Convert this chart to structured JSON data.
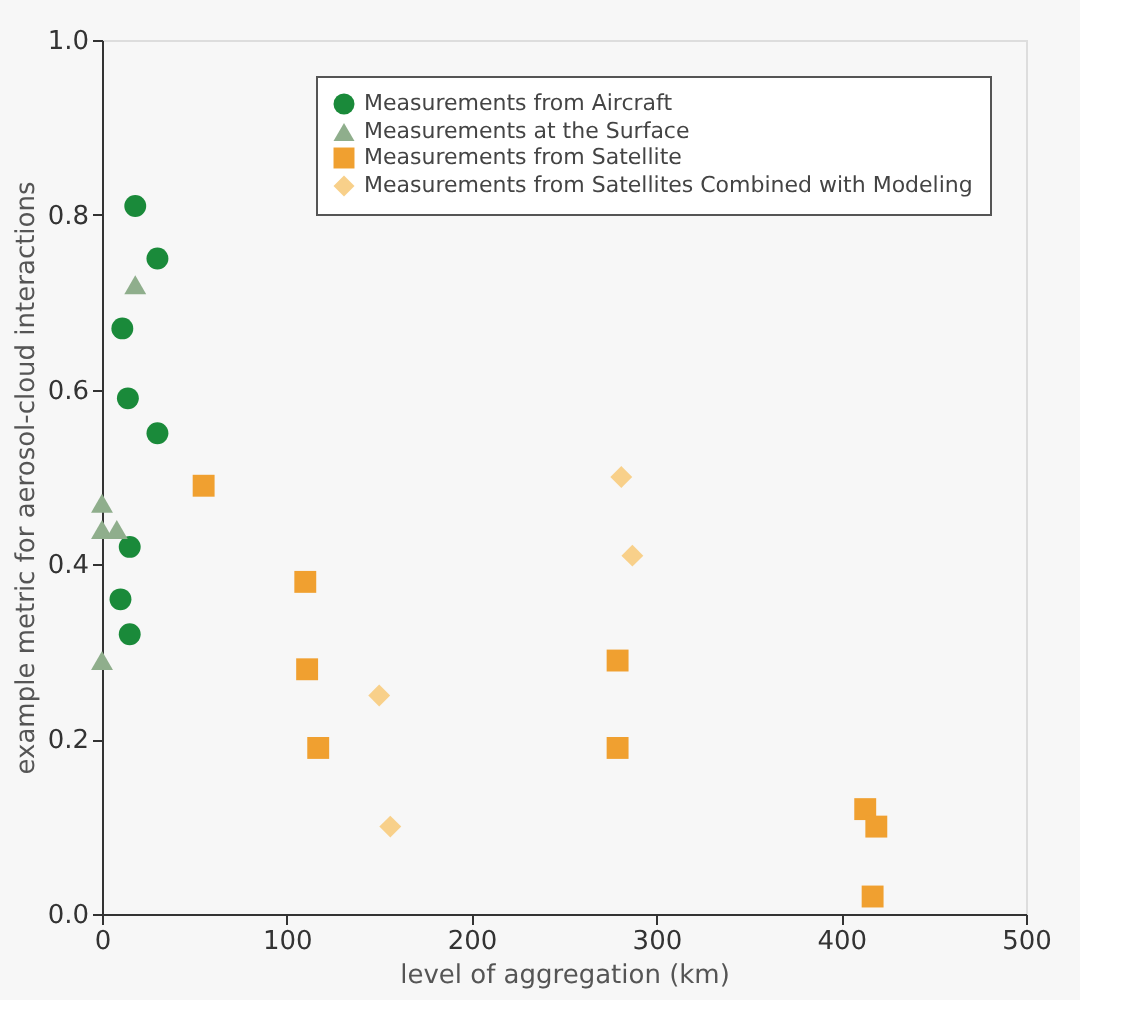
{
  "chart_data": {
    "type": "scatter",
    "xlabel": "level of aggregation (km)",
    "ylabel": "example metric for aerosol-cloud interactions",
    "xlim": [
      0,
      500
    ],
    "xticks": [
      0,
      100,
      200,
      300,
      400,
      500
    ],
    "ylim": [
      0,
      1.0
    ],
    "yticks": [
      {
        "value": 0,
        "label": "0.0"
      },
      0.2,
      0.4,
      0.6,
      0.8,
      {
        "value": 1.0,
        "label": "1.0"
      }
    ],
    "grid": false,
    "legend": "top right",
    "series": [
      {
        "name": "Measurements from Aircraft",
        "color": "#1a8a3a",
        "marker": "circle",
        "x": [
          18,
          30,
          11,
          14,
          30,
          15,
          10,
          15
        ],
        "values": [
          0.81,
          0.75,
          0.67,
          0.59,
          0.55,
          0.42,
          0.36,
          0.32
        ]
      },
      {
        "name": "Measurements at the Surface",
        "color": "#8fae8c",
        "marker": "triangle",
        "x": [
          18,
          0,
          0,
          8,
          0
        ],
        "values": [
          0.72,
          0.47,
          0.44,
          0.44,
          0.29
        ]
      },
      {
        "name": "Measurements from Satellite",
        "color": "#f0a030",
        "marker": "square",
        "x": [
          55,
          110,
          111,
          117,
          279,
          279,
          413,
          419,
          417
        ],
        "values": [
          0.49,
          0.38,
          0.28,
          0.19,
          0.29,
          0.19,
          0.12,
          0.1,
          0.02
        ]
      },
      {
        "name": "Measurements from Satellites Combined with Modeling",
        "color": "#f8d08a",
        "marker": "diamond",
        "x": [
          150,
          156,
          281,
          287
        ],
        "values": [
          0.25,
          0.1,
          0.5,
          0.41
        ]
      }
    ]
  }
}
